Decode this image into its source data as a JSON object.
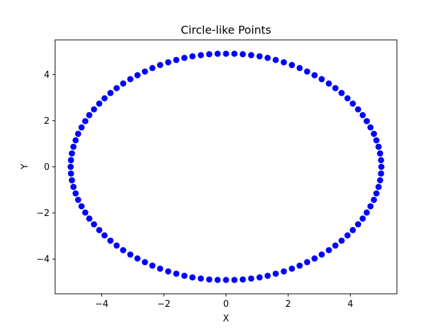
{
  "chart_data": {
    "type": "scatter",
    "title": "Circle-like Points",
    "xlabel": "X",
    "ylabel": "Y",
    "xlim": [
      -5.5,
      5.5
    ],
    "ylim": [
      -5.5,
      5.5
    ],
    "xticks": [
      -4,
      -2,
      0,
      2,
      4
    ],
    "yticks": [
      -4,
      -2,
      0,
      2,
      4
    ],
    "xtick_labels": [
      "−4",
      "−2",
      "0",
      "2",
      "4"
    ],
    "ytick_labels": [
      "−4",
      "−2",
      "0",
      "2",
      "4"
    ],
    "grid": false,
    "series": [
      {
        "color": "#0000ff",
        "x": [
          5.0,
          4.99,
          4.96,
          4.91,
          4.84,
          4.76,
          4.65,
          4.53,
          4.4,
          4.25,
          4.08,
          3.91,
          3.72,
          3.52,
          3.31,
          3.08,
          2.85,
          2.61,
          2.37,
          2.12,
          1.86,
          1.6,
          1.34,
          1.08,
          0.81,
          0.54,
          0.27,
          0.0,
          -0.27,
          -0.54,
          -0.81,
          -1.08,
          -1.34,
          -1.6,
          -1.86,
          -2.12,
          -2.37,
          -2.61,
          -2.85,
          -3.08,
          -3.31,
          -3.52,
          -3.72,
          -3.91,
          -4.08,
          -4.25,
          -4.4,
          -4.53,
          -4.65,
          -4.76,
          -4.84,
          -4.91,
          -4.96,
          -4.99,
          -5.0,
          -4.99,
          -4.96,
          -4.91,
          -4.84,
          -4.76,
          -4.65,
          -4.53,
          -4.4,
          -4.25,
          -4.08,
          -3.91,
          -3.72,
          -3.52,
          -3.31,
          -3.08,
          -2.85,
          -2.61,
          -2.37,
          -2.12,
          -1.86,
          -1.6,
          -1.34,
          -1.08,
          -0.81,
          -0.54,
          -0.27,
          0.0,
          0.27,
          0.54,
          0.81,
          1.08,
          1.34,
          1.6,
          1.86,
          2.12,
          2.37,
          2.61,
          2.85,
          3.08,
          3.31,
          3.52,
          3.72,
          3.91,
          4.08,
          4.25,
          4.4,
          4.53,
          4.65,
          4.76,
          4.84,
          4.91,
          4.96,
          4.99
        ],
        "y": [
          0.0,
          0.29,
          0.58,
          0.87,
          1.15,
          1.43,
          1.71,
          1.98,
          2.24,
          2.49,
          2.74,
          2.97,
          3.2,
          3.41,
          3.61,
          3.8,
          3.97,
          4.13,
          4.28,
          4.41,
          4.53,
          4.63,
          4.72,
          4.79,
          4.84,
          4.88,
          4.9,
          4.9,
          4.9,
          4.88,
          4.84,
          4.79,
          4.72,
          4.63,
          4.53,
          4.41,
          4.28,
          4.13,
          3.97,
          3.8,
          3.61,
          3.41,
          3.2,
          2.97,
          2.74,
          2.49,
          2.24,
          1.98,
          1.71,
          1.43,
          1.15,
          0.87,
          0.58,
          0.29,
          0.0,
          -0.29,
          -0.58,
          -0.87,
          -1.15,
          -1.43,
          -1.71,
          -1.98,
          -2.24,
          -2.49,
          -2.74,
          -2.97,
          -3.2,
          -3.41,
          -3.61,
          -3.8,
          -3.97,
          -4.13,
          -4.28,
          -4.41,
          -4.53,
          -4.63,
          -4.72,
          -4.79,
          -4.84,
          -4.88,
          -4.9,
          -4.9,
          -4.9,
          -4.88,
          -4.84,
          -4.79,
          -4.72,
          -4.63,
          -4.53,
          -4.41,
          -4.28,
          -4.13,
          -3.97,
          -3.8,
          -3.61,
          -3.41,
          -3.2,
          -2.97,
          -2.74,
          -2.49,
          -2.24,
          -1.98,
          -1.71,
          -1.43,
          -1.15,
          -0.87,
          -0.58,
          -0.29
        ]
      }
    ]
  }
}
